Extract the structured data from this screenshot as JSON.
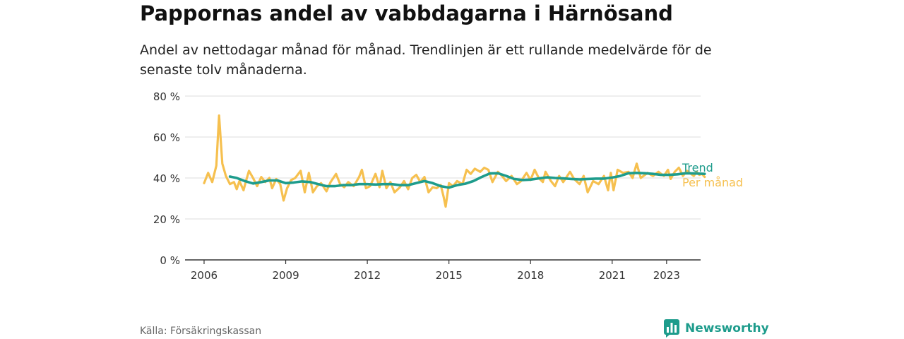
{
  "title": "Pappornas andel av vabbdagarna i Härnösand",
  "subtitle": "Andel av nettodagar månad för månad. Trendlinjen är ett rullande medelvärde för de senaste tolv månaderna.",
  "source": "Källa: Försäkringskassan",
  "brand": "Newsworthy",
  "colors": {
    "trend": "#1e9c8c",
    "monthly": "#f6c04f",
    "grid": "#dddddd",
    "axis": "#333333"
  },
  "chart_data": {
    "type": "line",
    "y_ticks": [
      0,
      20,
      40,
      60,
      80
    ],
    "y_tick_labels": [
      "0 %",
      "20 %",
      "40 %",
      "60 %",
      "80 %"
    ],
    "ylim": [
      0,
      80
    ],
    "x_ticks": [
      2006,
      2009,
      2012,
      2015,
      2018,
      2021,
      2023
    ],
    "x_tick_labels": [
      "2006",
      "2009",
      "2012",
      "2015",
      "2018",
      "2021",
      "2023"
    ],
    "xlim": [
      2005.3,
      2024.25
    ],
    "grid": true,
    "series": [
      {
        "name": "Per månad",
        "points": [
          [
            2006.0,
            37.5
          ],
          [
            2006.15,
            42.5
          ],
          [
            2006.3,
            38.0
          ],
          [
            2006.45,
            46.0
          ],
          [
            2006.55,
            70.5
          ],
          [
            2006.67,
            47.0
          ],
          [
            2006.8,
            41.0
          ],
          [
            2006.95,
            37.0
          ],
          [
            2007.1,
            38.0
          ],
          [
            2007.2,
            34.5
          ],
          [
            2007.3,
            38.5
          ],
          [
            2007.45,
            34.0
          ],
          [
            2007.55,
            39.0
          ],
          [
            2007.65,
            43.5
          ],
          [
            2007.8,
            40.0
          ],
          [
            2007.95,
            36.0
          ],
          [
            2008.1,
            40.5
          ],
          [
            2008.25,
            38.0
          ],
          [
            2008.4,
            40.0
          ],
          [
            2008.5,
            35.0
          ],
          [
            2008.65,
            39.5
          ],
          [
            2008.8,
            37.0
          ],
          [
            2008.92,
            29.0
          ],
          [
            2009.05,
            35.0
          ],
          [
            2009.2,
            39.0
          ],
          [
            2009.35,
            40.0
          ],
          [
            2009.55,
            43.5
          ],
          [
            2009.7,
            33.0
          ],
          [
            2009.85,
            42.5
          ],
          [
            2010.0,
            33.0
          ],
          [
            2010.15,
            36.0
          ],
          [
            2010.3,
            37.5
          ],
          [
            2010.5,
            33.5
          ],
          [
            2010.65,
            38.0
          ],
          [
            2010.85,
            42.0
          ],
          [
            2011.0,
            37.0
          ],
          [
            2011.15,
            35.5
          ],
          [
            2011.3,
            38.0
          ],
          [
            2011.5,
            36.0
          ],
          [
            2011.7,
            40.5
          ],
          [
            2011.8,
            44.0
          ],
          [
            2011.95,
            35.0
          ],
          [
            2012.1,
            36.0
          ],
          [
            2012.3,
            42.0
          ],
          [
            2012.45,
            35.5
          ],
          [
            2012.55,
            43.5
          ],
          [
            2012.7,
            35.0
          ],
          [
            2012.85,
            38.0
          ],
          [
            2013.0,
            33.0
          ],
          [
            2013.2,
            35.5
          ],
          [
            2013.35,
            38.5
          ],
          [
            2013.5,
            34.5
          ],
          [
            2013.65,
            40.0
          ],
          [
            2013.8,
            41.5
          ],
          [
            2013.95,
            38.0
          ],
          [
            2014.1,
            40.5
          ],
          [
            2014.25,
            33.0
          ],
          [
            2014.4,
            35.5
          ],
          [
            2014.55,
            35.0
          ],
          [
            2014.7,
            36.5
          ],
          [
            2014.8,
            31.0
          ],
          [
            2014.88,
            26.0
          ],
          [
            2015.0,
            37.5
          ],
          [
            2015.15,
            36.0
          ],
          [
            2015.3,
            38.5
          ],
          [
            2015.5,
            37.0
          ],
          [
            2015.65,
            44.0
          ],
          [
            2015.8,
            42.0
          ],
          [
            2015.95,
            44.5
          ],
          [
            2016.15,
            43.0
          ],
          [
            2016.3,
            45.0
          ],
          [
            2016.45,
            44.0
          ],
          [
            2016.6,
            38.0
          ],
          [
            2016.8,
            43.0
          ],
          [
            2016.95,
            41.0
          ],
          [
            2017.1,
            38.5
          ],
          [
            2017.3,
            41.0
          ],
          [
            2017.5,
            37.0
          ],
          [
            2017.65,
            38.5
          ],
          [
            2017.85,
            42.5
          ],
          [
            2018.0,
            39.0
          ],
          [
            2018.15,
            44.0
          ],
          [
            2018.3,
            40.0
          ],
          [
            2018.45,
            38.0
          ],
          [
            2018.55,
            43.0
          ],
          [
            2018.75,
            38.5
          ],
          [
            2018.9,
            36.0
          ],
          [
            2019.05,
            41.0
          ],
          [
            2019.2,
            38.0
          ],
          [
            2019.45,
            43.0
          ],
          [
            2019.6,
            39.5
          ],
          [
            2019.8,
            37.0
          ],
          [
            2019.95,
            41.0
          ],
          [
            2020.1,
            33.0
          ],
          [
            2020.3,
            38.5
          ],
          [
            2020.5,
            37.0
          ],
          [
            2020.7,
            41.0
          ],
          [
            2020.85,
            34.0
          ],
          [
            2020.95,
            42.5
          ],
          [
            2021.05,
            34.0
          ],
          [
            2021.2,
            44.0
          ],
          [
            2021.4,
            42.5
          ],
          [
            2021.6,
            43.0
          ],
          [
            2021.75,
            40.0
          ],
          [
            2021.9,
            47.0
          ],
          [
            2022.05,
            40.0
          ],
          [
            2022.3,
            42.5
          ],
          [
            2022.5,
            41.0
          ],
          [
            2022.7,
            43.0
          ],
          [
            2022.9,
            41.0
          ],
          [
            2023.05,
            44.0
          ],
          [
            2023.15,
            39.5
          ],
          [
            2023.3,
            43.0
          ],
          [
            2023.45,
            45.0
          ],
          [
            2023.6,
            41.0
          ],
          [
            2023.75,
            43.5
          ],
          [
            2023.9,
            42.0
          ],
          [
            2024.0,
            41.0
          ],
          [
            2024.1,
            43.0
          ],
          [
            2024.2,
            41.5
          ],
          [
            2024.3,
            42.0
          ],
          [
            2024.4,
            40.5
          ]
        ]
      },
      {
        "name": "Trend",
        "points": [
          [
            2006.95,
            40.7
          ],
          [
            2007.2,
            40.0
          ],
          [
            2007.5,
            38.5
          ],
          [
            2007.8,
            37.3
          ],
          [
            2008.1,
            38.0
          ],
          [
            2008.4,
            38.8
          ],
          [
            2008.7,
            38.8
          ],
          [
            2009.0,
            37.5
          ],
          [
            2009.3,
            37.8
          ],
          [
            2009.6,
            38.3
          ],
          [
            2009.9,
            38.0
          ],
          [
            2010.2,
            37.0
          ],
          [
            2010.5,
            36.0
          ],
          [
            2010.8,
            36.0
          ],
          [
            2011.1,
            36.5
          ],
          [
            2011.4,
            36.5
          ],
          [
            2011.7,
            37.0
          ],
          [
            2012.0,
            37.0
          ],
          [
            2012.3,
            36.8
          ],
          [
            2012.6,
            37.0
          ],
          [
            2012.9,
            37.0
          ],
          [
            2013.2,
            36.5
          ],
          [
            2013.5,
            36.5
          ],
          [
            2013.8,
            37.5
          ],
          [
            2014.1,
            38.5
          ],
          [
            2014.4,
            37.5
          ],
          [
            2014.7,
            36.0
          ],
          [
            2015.0,
            35.3
          ],
          [
            2015.3,
            36.5
          ],
          [
            2015.6,
            37.2
          ],
          [
            2015.9,
            38.5
          ],
          [
            2016.2,
            40.5
          ],
          [
            2016.5,
            42.2
          ],
          [
            2016.8,
            42.3
          ],
          [
            2017.1,
            41.0
          ],
          [
            2017.4,
            39.5
          ],
          [
            2017.7,
            39.0
          ],
          [
            2018.0,
            39.2
          ],
          [
            2018.3,
            39.8
          ],
          [
            2018.6,
            40.3
          ],
          [
            2018.9,
            40.0
          ],
          [
            2019.2,
            39.8
          ],
          [
            2019.5,
            39.5
          ],
          [
            2019.8,
            39.3
          ],
          [
            2020.1,
            39.5
          ],
          [
            2020.4,
            39.7
          ],
          [
            2020.7,
            39.7
          ],
          [
            2021.0,
            40.2
          ],
          [
            2021.3,
            41.0
          ],
          [
            2021.6,
            42.3
          ],
          [
            2021.9,
            42.5
          ],
          [
            2022.2,
            42.3
          ],
          [
            2022.5,
            42.0
          ],
          [
            2022.8,
            41.5
          ],
          [
            2023.1,
            41.5
          ],
          [
            2023.4,
            41.8
          ],
          [
            2023.7,
            42.3
          ],
          [
            2024.0,
            42.2
          ],
          [
            2024.4,
            42.0
          ]
        ]
      }
    ]
  }
}
